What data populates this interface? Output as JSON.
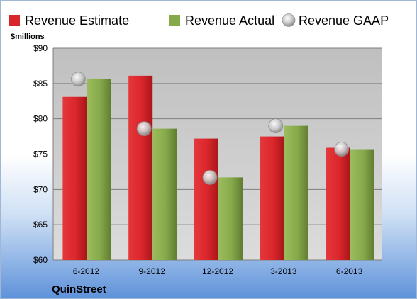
{
  "chart_data": {
    "type": "bar",
    "company": "QuinStreet",
    "ylabel": "$millions",
    "ylim": [
      60,
      90
    ],
    "ytick_step": 5,
    "ytick_prefix": "$",
    "categories": [
      "6-2012",
      "9-2012",
      "12-2012",
      "3-2013",
      "6-2013"
    ],
    "series": [
      {
        "name": "Revenue Estimate",
        "kind": "bar",
        "color": "#d9262b",
        "values": [
          83.1,
          86.1,
          77.2,
          77.5,
          75.9
        ]
      },
      {
        "name": "Revenue Actual",
        "kind": "bar",
        "color": "#86a94a",
        "values": [
          85.6,
          78.6,
          71.7,
          79.0,
          75.7
        ]
      },
      {
        "name": "Revenue GAAP",
        "kind": "marker",
        "color": "#c0c0c0",
        "values": [
          85.6,
          78.6,
          71.7,
          79.0,
          75.7
        ]
      }
    ],
    "legend": "top",
    "grid": true
  }
}
